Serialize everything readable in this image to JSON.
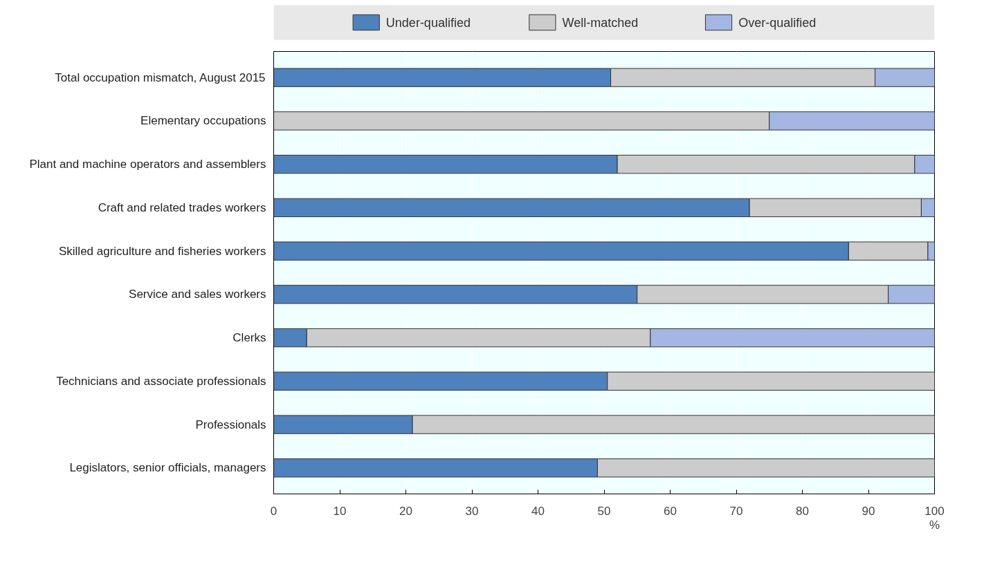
{
  "chart_data": {
    "type": "bar",
    "orientation": "horizontal",
    "stacked": true,
    "xlabel": "%",
    "categories": [
      "Total occupation mismatch, August 2015",
      "Elementary occupations",
      "Plant and machine operators and assemblers",
      "Craft and related trades workers",
      "Skilled agriculture and fisheries workers",
      "Service and sales workers",
      "Clerks",
      "Technicians and associate professionals",
      "Professionals",
      "Legislators, senior officials, managers"
    ],
    "series": [
      {
        "name": "Under-qualified",
        "color": "#4f81bd",
        "values": [
          51,
          null,
          52,
          72,
          87,
          55,
          5,
          50.5,
          21,
          49
        ]
      },
      {
        "name": "Well-matched",
        "color": "#cccccc",
        "values": [
          40,
          75,
          45,
          26,
          12,
          38,
          52,
          49.5,
          79,
          51
        ]
      },
      {
        "name": "Over-qualified",
        "color": "#a4b6e2",
        "values": [
          9,
          25,
          3,
          2,
          1,
          7,
          43,
          null,
          null,
          null
        ]
      }
    ],
    "xlim": [
      0,
      100
    ],
    "xticks": [
      0,
      10,
      20,
      30,
      40,
      50,
      60,
      70,
      80,
      90,
      100
    ],
    "grid": "x",
    "legend": "top"
  }
}
